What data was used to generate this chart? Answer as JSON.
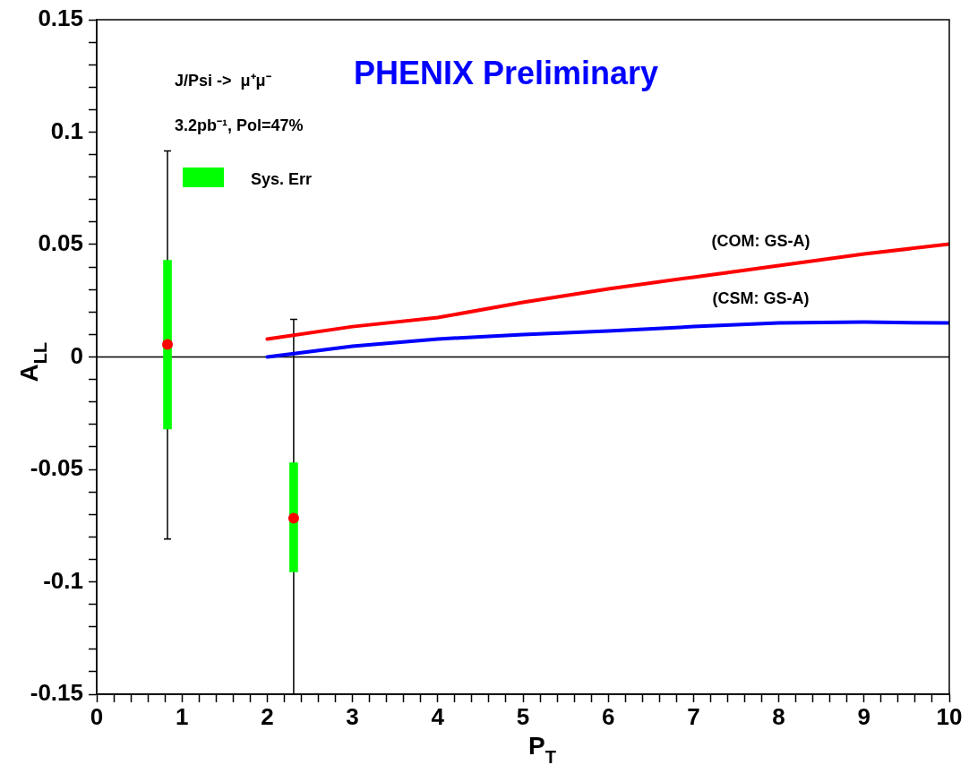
{
  "chart_data": {
    "type": "scatter",
    "xlabel": "P$_{T}$",
    "ylabel": "A$_{LL}$",
    "annotations": [
      "J/Psi ->  μ⁺μ⁻",
      "3.2pb⁻¹, Pol=47%",
      "PHENIX Preliminary"
    ],
    "xlim": [
      0,
      10
    ],
    "ylim": [
      -0.15,
      0.15
    ],
    "xticks": [
      0,
      {
        "value": 0.2,
        "label": null
      },
      {
        "value": 0.4,
        "label": null
      },
      {
        "value": 0.6,
        "label": null
      },
      {
        "value": 0.8,
        "label": null
      },
      1,
      {
        "value": 1.2,
        "label": null
      },
      {
        "value": 1.4,
        "label": null
      },
      {
        "value": 1.6,
        "label": null
      },
      {
        "value": 1.8,
        "label": null
      },
      2,
      {
        "value": 2.2,
        "label": null
      },
      {
        "value": 2.4,
        "label": null
      },
      {
        "value": 2.6,
        "label": null
      },
      {
        "value": 2.8,
        "label": null
      },
      3,
      {
        "value": 3.2,
        "label": null
      },
      {
        "value": 3.4,
        "label": null
      },
      {
        "value": 3.6,
        "label": null
      },
      {
        "value": 3.8,
        "label": null
      },
      4,
      {
        "value": 4.2,
        "label": null
      },
      {
        "value": 4.4,
        "label": null
      },
      {
        "value": 4.6,
        "label": null
      },
      {
        "value": 4.8,
        "label": null
      },
      5,
      {
        "value": 5.2,
        "label": null
      },
      {
        "value": 5.4,
        "label": null
      },
      {
        "value": 5.6,
        "label": null
      },
      {
        "value": 5.8,
        "label": null
      },
      6,
      {
        "value": 6.2,
        "label": null
      },
      {
        "value": 6.4,
        "label": null
      },
      {
        "value": 6.6,
        "label": null
      },
      {
        "value": 6.8,
        "label": null
      },
      7,
      {
        "value": 7.2,
        "label": null
      },
      {
        "value": 7.4,
        "label": null
      },
      {
        "value": 7.6,
        "label": null
      },
      {
        "value": 7.8,
        "label": null
      },
      8,
      {
        "value": 8.2,
        "label": null
      },
      {
        "value": 8.4,
        "label": null
      },
      {
        "value": 8.6,
        "label": null
      },
      {
        "value": 8.8,
        "label": null
      },
      9,
      {
        "value": 9.2,
        "label": null
      },
      {
        "value": 9.4,
        "label": null
      },
      {
        "value": 9.6,
        "label": null
      },
      {
        "value": 9.8,
        "label": null
      },
      10
    ],
    "yticks": [
      -0.15,
      {
        "value": -0.14,
        "label": null
      },
      {
        "value": -0.13,
        "label": null
      },
      {
        "value": -0.12,
        "label": null
      },
      {
        "value": -0.11,
        "label": null
      },
      -0.1,
      {
        "value": -0.09,
        "label": null
      },
      {
        "value": -0.08,
        "label": null
      },
      {
        "value": -0.07,
        "label": null
      },
      {
        "value": -0.06,
        "label": null
      },
      -0.05,
      {
        "value": -0.04,
        "label": null
      },
      {
        "value": -0.03,
        "label": null
      },
      {
        "value": -0.02,
        "label": null
      },
      {
        "value": -0.01,
        "label": null
      },
      0,
      {
        "value": 0.01,
        "label": null
      },
      {
        "value": 0.02,
        "label": null
      },
      {
        "value": 0.03,
        "label": null
      },
      {
        "value": 0.04,
        "label": null
      },
      0.05,
      {
        "value": 0.06,
        "label": null
      },
      {
        "value": 0.07,
        "label": null
      },
      {
        "value": 0.08,
        "label": null
      },
      {
        "value": 0.09,
        "label": null
      },
      0.1,
      {
        "value": 0.11,
        "label": null
      },
      {
        "value": 0.12,
        "label": null
      },
      {
        "value": 0.13,
        "label": null
      },
      {
        "value": 0.14,
        "label": null
      },
      0.15
    ],
    "grid": false,
    "legend": "top left",
    "marker": "circle",
    "ref_lines": [
      {
        "axis": "y",
        "value": 0,
        "color": "#000000"
      }
    ],
    "series": [
      {
        "color": "#ff0000",
        "x": [
          0.83,
          2.31
        ],
        "values": [
          0.0056,
          -0.0717
        ],
        "errors": [
          [
            -0.081,
            0.0916
          ],
          [
            -0.15,
            0.0167
          ]
        ]
      },
      {
        "type": "bar",
        "name": "Sys. Err",
        "color": "#00ff00",
        "x": [
          0.83,
          2.31
        ],
        "base": [
          -0.032,
          -0.0956
        ],
        "values": [
          0.075,
          0.0486
        ]
      },
      {
        "type": "line",
        "name": "(COM: GS-A)",
        "color": "#ff0000",
        "marker": "none",
        "x": [
          2,
          3,
          4,
          5,
          6,
          7,
          8,
          9,
          10
        ],
        "values": [
          0.008,
          0.0135,
          0.0175,
          0.0243,
          0.0303,
          0.0355,
          0.0406,
          0.0458,
          0.0502
        ]
      },
      {
        "type": "line",
        "name": "(CSM: GS-A)",
        "color": "#0000ff",
        "marker": "none",
        "x": [
          2,
          3,
          4,
          5,
          6,
          7,
          8,
          9,
          10
        ],
        "values": [
          0,
          0.0048,
          0.008,
          0.01,
          0.0116,
          0.0135,
          0.0151,
          0.0155,
          0.0151
        ]
      }
    ]
  }
}
